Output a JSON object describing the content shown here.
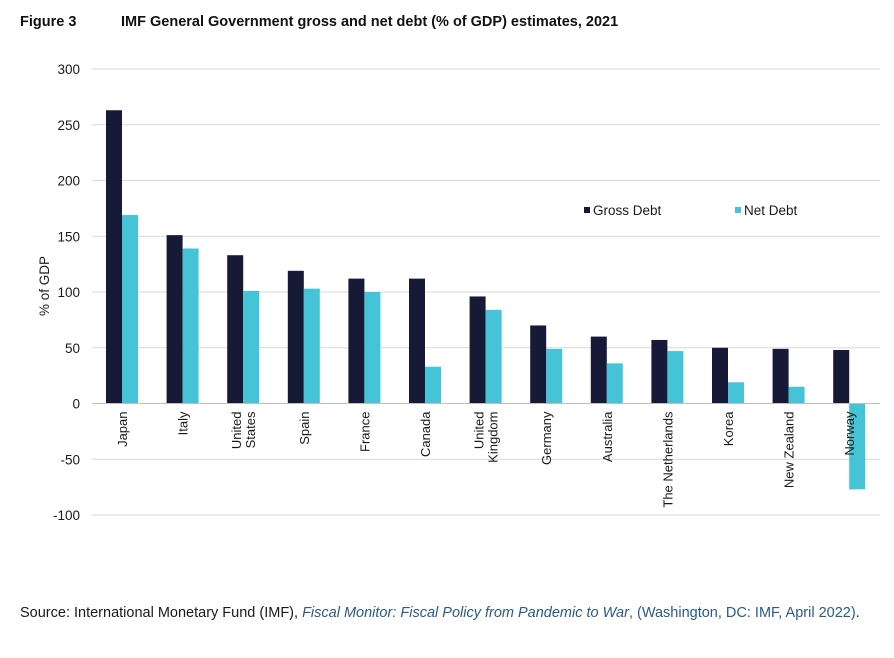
{
  "figure_label": "Figure 3",
  "title": "IMF General Government gross and net debt (% of GDP) estimates, 2021",
  "source": {
    "prefix": "Source: International Monetary Fund (IMF), ",
    "italic_title": "Fiscal Monitor: Fiscal Policy from Pandemic to War",
    "link_rest": ", (Washington, DC: IMF, April 2022)",
    "suffix": "."
  },
  "colors": {
    "gross": "#161a36",
    "net": "#44c4d6",
    "grid": "#d9d9d9"
  },
  "chart_data": {
    "type": "bar",
    "title": "IMF General Government gross and net debt (% of GDP) estimates, 2021",
    "xlabel": "",
    "ylabel": "% of GDP",
    "ylim": [
      -100,
      300
    ],
    "yticks": [
      300,
      250,
      200,
      150,
      100,
      50,
      0,
      -50,
      -100
    ],
    "grid": true,
    "legend_position": "right",
    "categories": [
      [
        "Japan"
      ],
      [
        "Italy"
      ],
      [
        "United",
        "States"
      ],
      [
        "Spain"
      ],
      [
        "France"
      ],
      [
        "Canada"
      ],
      [
        "United",
        "Kingdom"
      ],
      [
        "Germany"
      ],
      [
        "Australia"
      ],
      [
        "The Netherlands"
      ],
      [
        "Korea"
      ],
      [
        "New Zealand"
      ],
      [
        "Norway"
      ]
    ],
    "series": [
      {
        "name": "Gross Debt",
        "values": [
          263,
          151,
          133,
          119,
          112,
          112,
          96,
          70,
          60,
          57,
          50,
          49,
          48
        ]
      },
      {
        "name": "Net Debt",
        "values": [
          169,
          139,
          101,
          103,
          100,
          33,
          84,
          49,
          36,
          47,
          19,
          15,
          -77
        ]
      }
    ]
  }
}
